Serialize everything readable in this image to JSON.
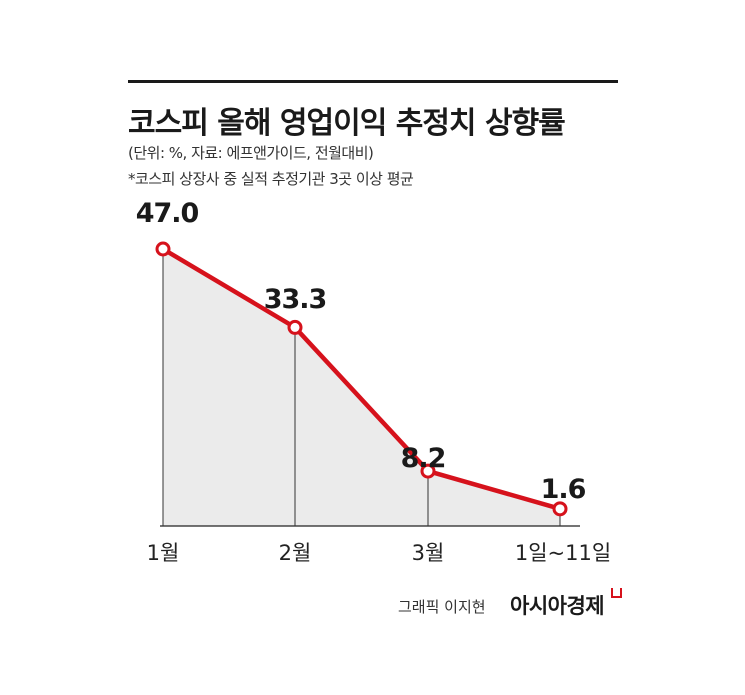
{
  "title": "코스피 올해 영업이익 추정치 상향률",
  "subtitle": "(단위: %, 자료: 에프앤가이드, 전월대비)",
  "note": "*코스피 상장사 중 실적 추정기관 3곳 이상 평균",
  "credit": "그래픽 이지현",
  "brand": "아시아경제",
  "colors": {
    "line": "#d6121c",
    "area": "#ebebeb",
    "text": "#1a1a1a"
  },
  "chart_data": {
    "type": "line",
    "categories": [
      "1월",
      "2월",
      "3월",
      "1일~11일"
    ],
    "values": [
      47.0,
      33.3,
      8.2,
      1.6
    ],
    "data_labels": [
      "47.0",
      "33.3",
      "8.2",
      "1.6"
    ],
    "area_fill": true,
    "grid": false,
    "ylim": [
      0,
      47
    ]
  }
}
